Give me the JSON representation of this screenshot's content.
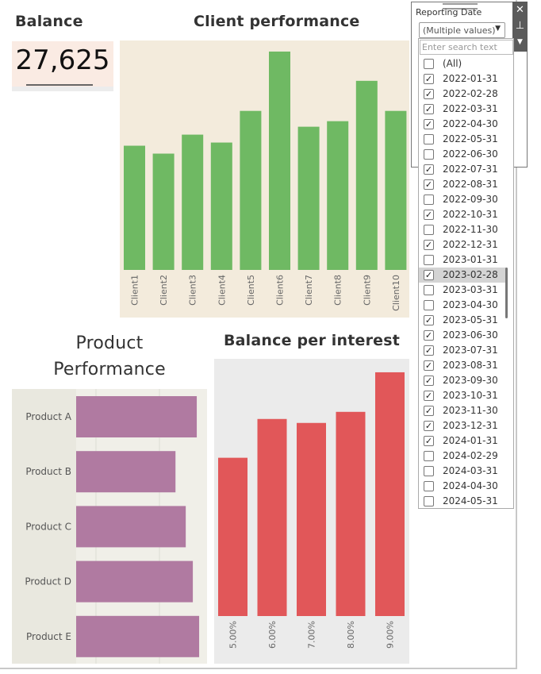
{
  "balance": {
    "title": "Balance",
    "value": "27,625"
  },
  "client_chart": {
    "title": "Client performance",
    "color": "#6fb963"
  },
  "product_chart": {
    "title_line1": "Product",
    "title_line2": "Performance",
    "color": "#b07aa1"
  },
  "interest_chart": {
    "title": "Balance per interest",
    "color": "#e15759"
  },
  "filter": {
    "title": "Reporting Date",
    "selected": "(Multiple values)",
    "search_placeholder": "Enter search text",
    "items": [
      {
        "label": "(All)",
        "checked": false
      },
      {
        "label": "2022-01-31",
        "checked": true
      },
      {
        "label": "2022-02-28",
        "checked": true
      },
      {
        "label": "2022-03-31",
        "checked": true
      },
      {
        "label": "2022-04-30",
        "checked": true
      },
      {
        "label": "2022-05-31",
        "checked": false
      },
      {
        "label": "2022-06-30",
        "checked": false
      },
      {
        "label": "2022-07-31",
        "checked": true
      },
      {
        "label": "2022-08-31",
        "checked": true
      },
      {
        "label": "2022-09-30",
        "checked": false
      },
      {
        "label": "2022-10-31",
        "checked": true
      },
      {
        "label": "2022-11-30",
        "checked": false
      },
      {
        "label": "2022-12-31",
        "checked": true
      },
      {
        "label": "2023-01-31",
        "checked": false
      },
      {
        "label": "2023-02-28",
        "checked": true,
        "highlighted": true
      },
      {
        "label": "2023-03-31",
        "checked": false
      },
      {
        "label": "2023-04-30",
        "checked": false
      },
      {
        "label": "2023-05-31",
        "checked": true
      },
      {
        "label": "2023-06-30",
        "checked": true
      },
      {
        "label": "2023-07-31",
        "checked": true
      },
      {
        "label": "2023-08-31",
        "checked": true
      },
      {
        "label": "2023-09-30",
        "checked": true
      },
      {
        "label": "2023-10-31",
        "checked": true
      },
      {
        "label": "2023-11-30",
        "checked": true
      },
      {
        "label": "2023-12-31",
        "checked": true
      },
      {
        "label": "2024-01-31",
        "checked": true
      },
      {
        "label": "2024-02-29",
        "checked": false
      },
      {
        "label": "2024-03-31",
        "checked": false
      },
      {
        "label": "2024-04-30",
        "checked": false
      },
      {
        "label": "2024-05-31",
        "checked": false
      }
    ],
    "icons": [
      "close-icon",
      "pin-icon",
      "dropdown-icon"
    ]
  },
  "chart_data": [
    {
      "type": "bar",
      "title": "Client performance",
      "categories": [
        "Client1",
        "Client2",
        "Client3",
        "Client4",
        "Client5",
        "Client6",
        "Client7",
        "Client8",
        "Client9",
        "Client10"
      ],
      "values": [
        157,
        147,
        171,
        161,
        201,
        276,
        181,
        188,
        239,
        201
      ],
      "ylim": [
        0,
        290
      ]
    },
    {
      "type": "bar",
      "orientation": "horizontal",
      "title": "Product Performance",
      "categories": [
        "Product A",
        "Product B",
        "Product C",
        "Product D",
        "Product E"
      ],
      "values": [
        153,
        126,
        139,
        148,
        156
      ],
      "xlim": [
        0,
        164
      ]
    },
    {
      "type": "bar",
      "title": "Balance per interest",
      "categories": [
        "5.00%",
        "6.00%",
        "7.00%",
        "8.00%",
        "9.00%"
      ],
      "values": [
        200,
        249,
        244,
        258,
        308
      ],
      "ylim": [
        0,
        325
      ]
    }
  ]
}
